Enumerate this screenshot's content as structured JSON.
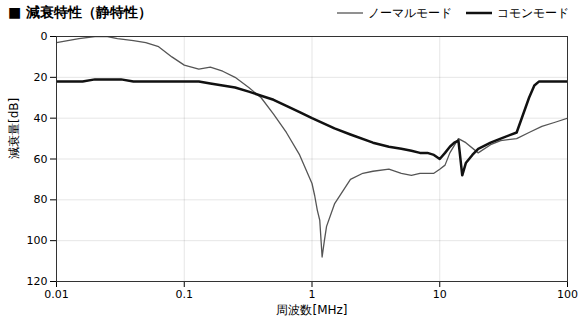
{
  "chart_data": {
    "type": "line",
    "title": "■ 減衰特性（静特性）",
    "xlabel": "周波数[MHz]",
    "ylabel": "減衰量[dB]",
    "log": "x",
    "xlim": [
      0.01,
      100
    ],
    "ylim": [
      120,
      0
    ],
    "xticks": [
      0.01,
      0.1,
      1,
      10,
      100
    ],
    "yticks": [
      0,
      20,
      40,
      60,
      80,
      100,
      120
    ],
    "grid": true,
    "legend": "upper right",
    "series": [
      {
        "name": "ノーマルモード",
        "color": "#555555",
        "x": [
          0.01,
          0.015,
          0.02,
          0.025,
          0.03,
          0.04,
          0.05,
          0.063,
          0.08,
          0.1,
          0.13,
          0.16,
          0.2,
          0.25,
          0.32,
          0.4,
          0.5,
          0.63,
          0.8,
          1.0,
          1.05,
          1.1,
          1.15,
          1.2,
          1.25,
          1.3,
          1.5,
          2.0,
          2.5,
          3.0,
          4.0,
          5.0,
          6.0,
          7.0,
          8.0,
          9.0,
          10.0,
          11.0,
          12.0,
          14.0,
          16.0,
          20.0,
          25.0,
          30.0,
          40.0,
          50.0,
          63.0,
          80.0,
          100.0
        ],
        "values": [
          3,
          1,
          0,
          0,
          1,
          2,
          3,
          5,
          10,
          14,
          16,
          15,
          17,
          20,
          25,
          30,
          38,
          47,
          58,
          72,
          78,
          85,
          90,
          108,
          100,
          93,
          82,
          70,
          67,
          66,
          65,
          67,
          68,
          67,
          67,
          67,
          65,
          63,
          57,
          50,
          52,
          57,
          53,
          51,
          50,
          47,
          44,
          42,
          40
        ]
      },
      {
        "name": "コモンモード",
        "color": "#111111",
        "x": [
          0.01,
          0.013,
          0.016,
          0.02,
          0.025,
          0.032,
          0.04,
          0.05,
          0.063,
          0.08,
          0.1,
          0.13,
          0.16,
          0.2,
          0.25,
          0.32,
          0.4,
          0.5,
          0.63,
          0.8,
          1.0,
          1.5,
          2.0,
          3.0,
          4.0,
          5.0,
          6.0,
          7.0,
          8.0,
          9.0,
          10.0,
          11.0,
          12.0,
          13.0,
          14.0,
          15.0,
          16.0,
          18.0,
          20.0,
          25.0,
          30.0,
          40.0,
          50.0,
          55.0,
          60.0,
          70.0,
          80.0,
          90.0,
          100.0
        ],
        "values": [
          22,
          22,
          22,
          21,
          21,
          21,
          22,
          22,
          22,
          22,
          22,
          22,
          23,
          24,
          25,
          27,
          29,
          31,
          34,
          37,
          40,
          45,
          48,
          52,
          54,
          55,
          56,
          57,
          57,
          58,
          60,
          57,
          54,
          52,
          51,
          68,
          62,
          58,
          55,
          52,
          50,
          47,
          30,
          24,
          22,
          22,
          22,
          22,
          22
        ]
      }
    ]
  }
}
